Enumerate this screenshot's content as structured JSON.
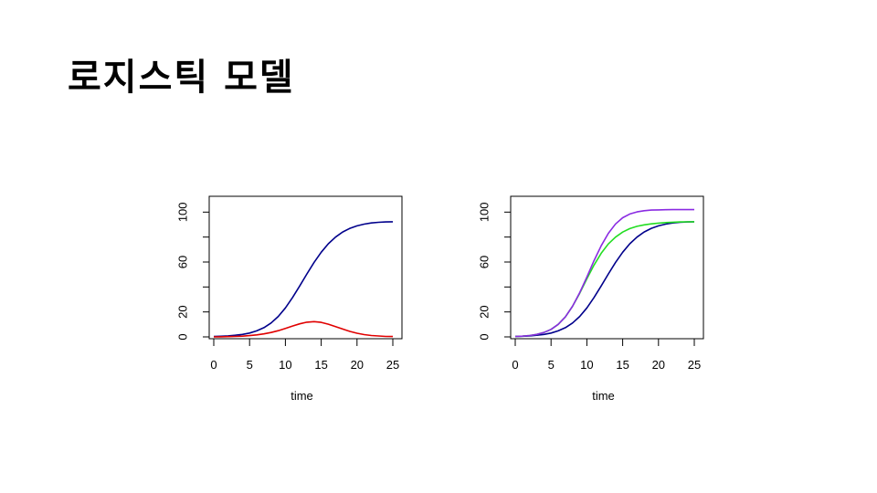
{
  "slide": {
    "title": "로지스틱 모델"
  },
  "chart_data": [
    {
      "type": "line",
      "xlabel": "time",
      "ylabel": "",
      "xlim": [
        0,
        25
      ],
      "ylim": [
        0,
        120
      ],
      "x_ticks": [
        0,
        5,
        10,
        15,
        20,
        25
      ],
      "y_ticks": [
        0,
        20,
        60,
        100
      ],
      "y_minor_ticks": [
        40,
        80,
        120
      ],
      "grid": false,
      "series": [
        {
          "color": "#00008b",
          "x": [
            0,
            1,
            2,
            3,
            4,
            5,
            6,
            7,
            8,
            9,
            10,
            11,
            12,
            13,
            14,
            15,
            16,
            17,
            18,
            19,
            20,
            21,
            22,
            23,
            24,
            25
          ],
          "y": [
            0.3,
            0.5,
            0.8,
            1.3,
            2.0,
            3.1,
            4.8,
            7.4,
            11.1,
            16.4,
            23.2,
            31.5,
            40.8,
            50.4,
            59.7,
            67.8,
            74.6,
            80.0,
            84.1,
            87.0,
            89.0,
            90.4,
            91.3,
            91.8,
            92.1,
            92.3
          ]
        },
        {
          "color": "#e00000",
          "x": [
            0,
            1,
            2,
            3,
            4,
            5,
            6,
            7,
            8,
            9,
            10,
            11,
            12,
            13,
            14,
            15,
            16,
            17,
            18,
            19,
            20,
            21,
            22,
            23,
            24,
            25
          ],
          "y": [
            0,
            0.1,
            0.2,
            0.4,
            0.6,
            1.0,
            1.6,
            2.4,
            3.5,
            5.0,
            6.8,
            8.7,
            10.5,
            11.8,
            12.2,
            11.6,
            10.2,
            8.3,
            6.3,
            4.4,
            2.9,
            1.8,
            1.1,
            0.7,
            0.4,
            0.3
          ]
        }
      ]
    },
    {
      "type": "line",
      "xlabel": "time",
      "ylabel": "",
      "xlim": [
        0,
        25
      ],
      "ylim": [
        0,
        120
      ],
      "x_ticks": [
        0,
        5,
        10,
        15,
        20,
        25
      ],
      "y_ticks": [
        0,
        20,
        60,
        100
      ],
      "y_minor_ticks": [
        40,
        80,
        120
      ],
      "grid": false,
      "series": [
        {
          "color": "#00008b",
          "x": [
            0,
            1,
            2,
            3,
            4,
            5,
            6,
            7,
            8,
            9,
            10,
            11,
            12,
            13,
            14,
            15,
            16,
            17,
            18,
            19,
            20,
            21,
            22,
            23,
            24,
            25
          ],
          "y": [
            0.3,
            0.5,
            0.8,
            1.3,
            2.0,
            3.1,
            4.8,
            7.4,
            11.1,
            16.4,
            23.2,
            31.5,
            40.8,
            50.4,
            59.7,
            67.8,
            74.6,
            80.0,
            84.1,
            87.0,
            89.0,
            90.4,
            91.3,
            91.8,
            92.1,
            92.3
          ]
        },
        {
          "color": "#22dd22",
          "x": [
            0,
            1,
            2,
            3,
            4,
            5,
            6,
            7,
            8,
            9,
            10,
            11,
            12,
            13,
            14,
            15,
            16,
            17,
            18,
            19,
            20,
            21,
            22,
            23,
            24,
            25
          ],
          "y": [
            0.3,
            0.6,
            1.1,
            2.0,
            3.5,
            6.0,
            10.0,
            16.0,
            24.5,
            35.0,
            46.5,
            57.5,
            67.0,
            74.5,
            80.0,
            84.0,
            86.8,
            88.6,
            89.8,
            90.6,
            91.2,
            91.6,
            91.9,
            92.1,
            92.2,
            92.3
          ]
        },
        {
          "color": "#8a2be2",
          "x": [
            0,
            1,
            2,
            3,
            4,
            5,
            6,
            7,
            8,
            9,
            10,
            11,
            12,
            13,
            14,
            15,
            16,
            17,
            18,
            19,
            20,
            21,
            22,
            23,
            24,
            25
          ],
          "y": [
            0.3,
            0.6,
            1.1,
            2.0,
            3.5,
            6.0,
            10.0,
            16.0,
            24.5,
            35.5,
            48.0,
            61.0,
            73.0,
            83.0,
            90.5,
            95.5,
            98.5,
            100.2,
            101.1,
            101.6,
            101.8,
            101.9,
            102.0,
            102.0,
            102.0,
            102.0
          ]
        }
      ]
    }
  ]
}
